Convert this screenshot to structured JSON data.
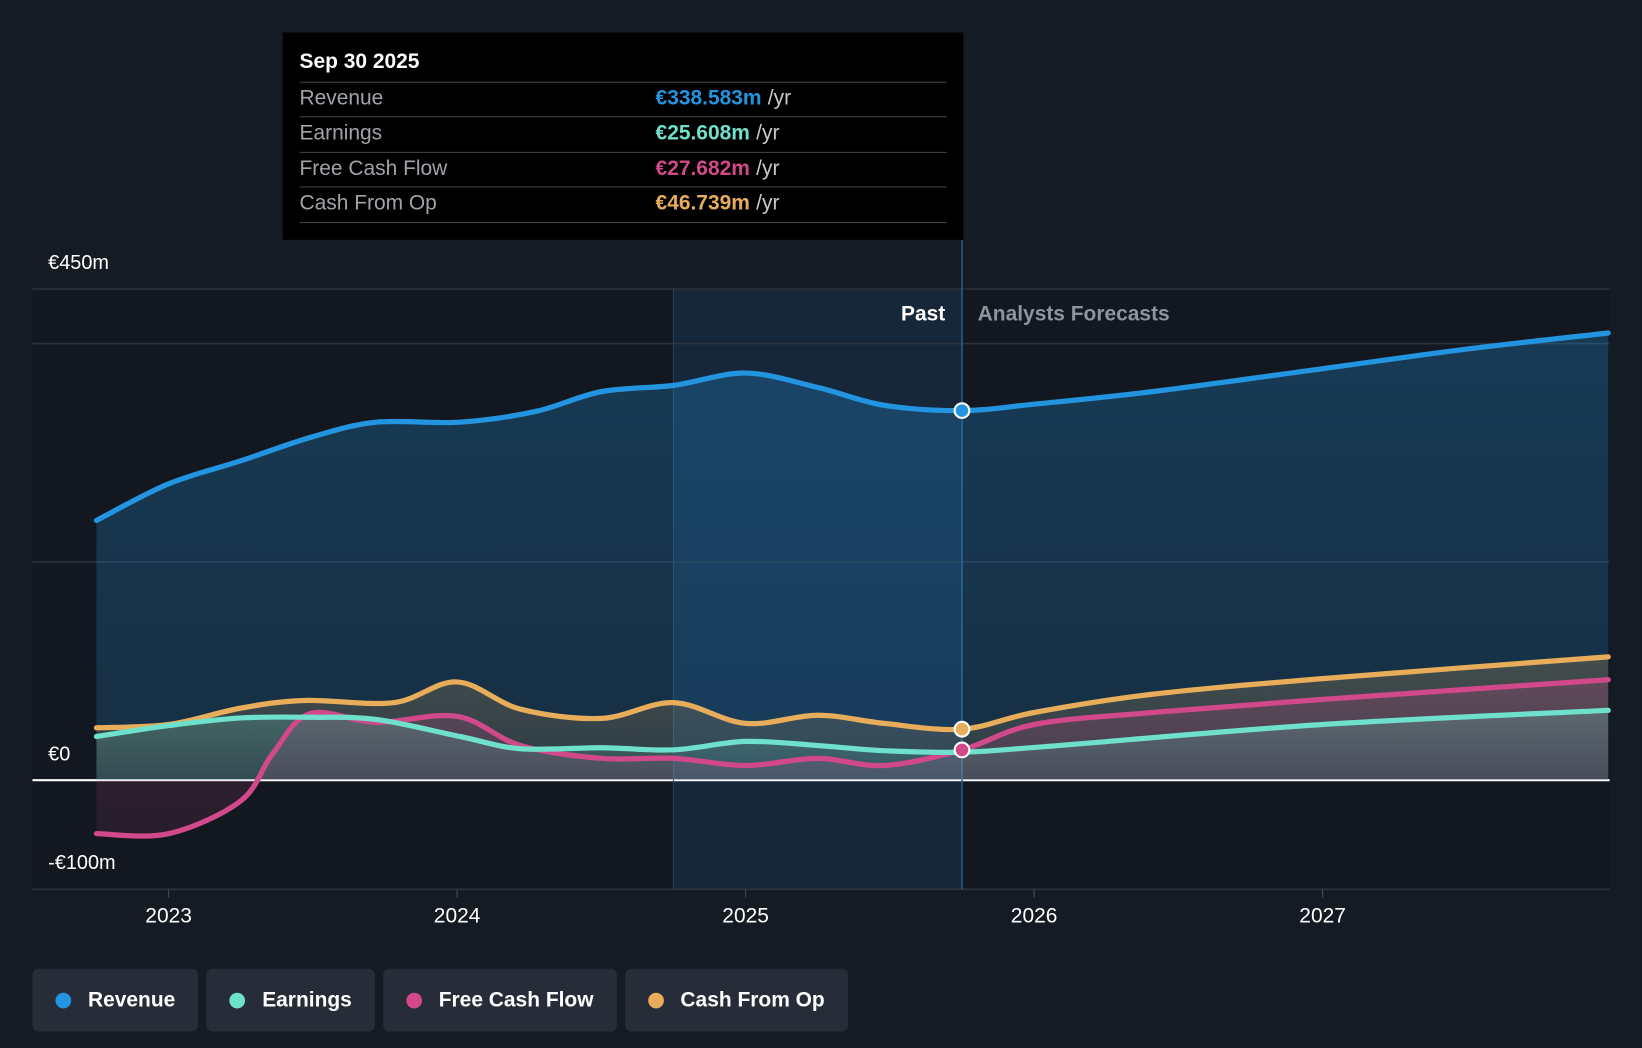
{
  "tooltip": {
    "date": "Sep 30 2025",
    "rows": [
      {
        "label": "Revenue",
        "value": "€338.583m",
        "unit": "/yr",
        "color": "#2394df"
      },
      {
        "label": "Earnings",
        "value": "€25.608m",
        "unit": "/yr",
        "color": "#6ee0cb"
      },
      {
        "label": "Free Cash Flow",
        "value": "€27.682m",
        "unit": "/yr",
        "color": "#d1498a"
      },
      {
        "label": "Cash From Op",
        "value": "€46.739m",
        "unit": "/yr",
        "color": "#e8ad5a"
      }
    ]
  },
  "chart_data": {
    "type": "area",
    "title": "",
    "xlabel": "",
    "ylabel": "",
    "ylim": [
      -100,
      450
    ],
    "xlim": [
      2022.75,
      2027.99
    ],
    "y_tick_labels": [
      "€450m",
      "€0",
      "-€100m"
    ],
    "y_ticks": [
      450,
      0,
      -100
    ],
    "gridlines": [
      450,
      400,
      200,
      0,
      -100
    ],
    "x_ticks": [
      2023,
      2024,
      2025,
      2026,
      2027
    ],
    "x_tick_labels": [
      "2023",
      "2024",
      "2025",
      "2026",
      "2027"
    ],
    "past_label": "Past",
    "forecast_label": "Analysts Forecasts",
    "past_end": 2025.75,
    "highlight_start": 2024.75,
    "legend_placement": "bottom-left",
    "series": [
      {
        "name": "Revenue",
        "color": "#2394df",
        "points": [
          [
            2022.75,
            238
          ],
          [
            2023,
            271.5
          ],
          [
            2023.25,
            292.6
          ],
          [
            2023.5,
            314.7
          ],
          [
            2023.72,
            328
          ],
          [
            2024.01,
            328
          ],
          [
            2024.27,
            337.7
          ],
          [
            2024.5,
            356
          ],
          [
            2024.75,
            361.7
          ],
          [
            2025,
            373
          ],
          [
            2025.25,
            359.8
          ],
          [
            2025.48,
            343.5
          ],
          [
            2025.75,
            338.6
          ],
          [
            2026,
            344.5
          ],
          [
            2026.41,
            356
          ],
          [
            2027,
            377
          ],
          [
            2027.5,
            395
          ],
          [
            2027.99,
            409.7
          ]
        ]
      },
      {
        "name": "Earnings",
        "color": "#6ee0cb",
        "points": [
          [
            2022.75,
            40
          ],
          [
            2023,
            50
          ],
          [
            2023.25,
            57
          ],
          [
            2023.5,
            57.6
          ],
          [
            2023.72,
            55.6
          ],
          [
            2024.01,
            40
          ],
          [
            2024.22,
            28.8
          ],
          [
            2024.5,
            29.7
          ],
          [
            2024.75,
            27.8
          ],
          [
            2025,
            35.5
          ],
          [
            2025.25,
            31.7
          ],
          [
            2025.48,
            27
          ],
          [
            2025.75,
            25.6
          ],
          [
            2026.05,
            31
          ],
          [
            2027,
            51
          ],
          [
            2027.99,
            64
          ]
        ]
      },
      {
        "name": "Free Cash Flow",
        "color": "#d1498a",
        "points": [
          [
            2022.75,
            -49
          ],
          [
            2023,
            -49
          ],
          [
            2023.25,
            -19
          ],
          [
            2023.36,
            24
          ],
          [
            2023.49,
            61
          ],
          [
            2023.72,
            53
          ],
          [
            2024,
            58.5
          ],
          [
            2024.22,
            31.7
          ],
          [
            2024.5,
            20
          ],
          [
            2024.75,
            20
          ],
          [
            2025,
            13.4
          ],
          [
            2025.25,
            20
          ],
          [
            2025.48,
            13.4
          ],
          [
            2025.75,
            27.7
          ],
          [
            2026,
            51
          ],
          [
            2026.41,
            62
          ],
          [
            2027,
            74
          ],
          [
            2027.99,
            92
          ]
        ]
      },
      {
        "name": "Cash From Op",
        "color": "#e8ad5a",
        "points": [
          [
            2022.75,
            48
          ],
          [
            2023,
            51
          ],
          [
            2023.25,
            66
          ],
          [
            2023.47,
            73
          ],
          [
            2023.78,
            71
          ],
          [
            2024,
            90
          ],
          [
            2024.22,
            65
          ],
          [
            2024.5,
            56.6
          ],
          [
            2024.75,
            71
          ],
          [
            2025,
            52
          ],
          [
            2025.25,
            59.5
          ],
          [
            2025.48,
            52
          ],
          [
            2025.75,
            46.7
          ],
          [
            2026,
            62
          ],
          [
            2026.41,
            78.7
          ],
          [
            2027,
            93
          ],
          [
            2027.99,
            113
          ]
        ]
      }
    ]
  },
  "legend": [
    {
      "label": "Revenue",
      "color": "#2394df"
    },
    {
      "label": "Earnings",
      "color": "#6ee0cb"
    },
    {
      "label": "Free Cash Flow",
      "color": "#d1498a"
    },
    {
      "label": "Cash From Op",
      "color": "#e8ad5a"
    }
  ]
}
